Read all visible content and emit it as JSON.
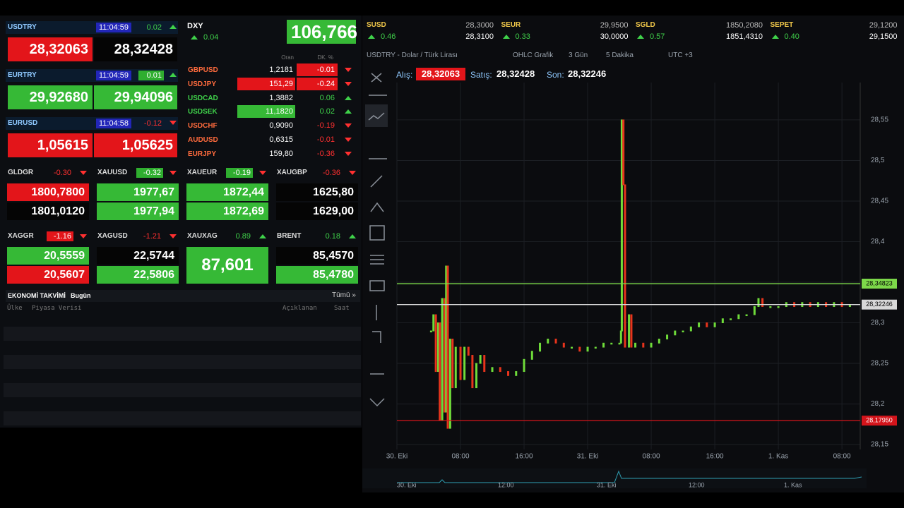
{
  "majors": [
    {
      "symbol": "USDTRY",
      "time": "11:04:59",
      "change": "0.02",
      "bid": "28,32063",
      "ask": "28,32428",
      "bid_bg": "#e3151a",
      "ask_bg": "#050505"
    },
    {
      "symbol": "EURTRY",
      "time": "11:04:59",
      "change": "0.01",
      "change_bg": "#2fae2f",
      "bid": "29,92680",
      "ask": "29,94096",
      "bid_bg": "#36b936",
      "ask_bg": "#36b936"
    },
    {
      "symbol": "EURUSD",
      "time": "11:04:58",
      "change": "-0.12",
      "bid": "1,05615",
      "ask": "1,05625",
      "bid_bg": "#e3151a",
      "ask_bg": "#e3151a"
    }
  ],
  "metals_rows": [
    [
      {
        "symbol": "GLDGR",
        "change": "-0.30",
        "bid": "1800,7800",
        "ask": "1801,0120",
        "bid_bg": "#e3151a",
        "ask_bg": "#050505"
      },
      {
        "symbol": "XAUUSD",
        "change": "-0.32",
        "change_bg": "#2fae2f",
        "bid": "1977,67",
        "ask": "1977,94",
        "bid_bg": "#36b936",
        "ask_bg": "#36b936"
      },
      {
        "symbol": "XAUEUR",
        "change": "-0.19",
        "change_bg": "#2fae2f",
        "bid": "1872,44",
        "ask": "1872,69",
        "bid_bg": "#36b936",
        "ask_bg": "#36b936"
      },
      {
        "symbol": "XAUGBP",
        "change": "-0.36",
        "bid": "1625,80",
        "ask": "1629,00",
        "bid_bg": "#050505",
        "ask_bg": "#050505"
      }
    ],
    [
      {
        "symbol": "XAGGR",
        "change": "-1.16",
        "change_bg": "#e3151a",
        "bid": "20,5559",
        "ask": "20,5607",
        "bid_bg": "#36b936",
        "ask_bg": "#e3151a"
      },
      {
        "symbol": "XAGUSD",
        "change": "-1.21",
        "bid": "22,5744",
        "ask": "22,5806",
        "bid_bg": "#050505",
        "ask_bg": "#36b936"
      },
      {
        "symbol": "XAUXAG",
        "change": "0.89",
        "price": "87,601",
        "price_bg": "#36b936"
      },
      {
        "symbol": "BRENT",
        "change": "0.18",
        "bid": "85,4570",
        "ask": "85,4780",
        "bid_bg": "#050505",
        "ask_bg": "#36b936"
      }
    ]
  ],
  "calendar": {
    "title": "EKONOMİ TAKVİMİ",
    "scope": "Bugün",
    "all": "Tümü »",
    "headers": [
      "Ülke",
      "Piyasa Verisi",
      "Açıklanan",
      "Saat"
    ]
  },
  "dxy": {
    "symbol": "DXY",
    "change": "0.04",
    "price": "106,766"
  },
  "fx_table": {
    "headers": [
      "Oran",
      "DK. %"
    ],
    "rows": [
      {
        "symbol": "GBPUSD",
        "rate": "1,2181",
        "change": "-0.01",
        "change_bg": "#e3151a"
      },
      {
        "symbol": "USDJPY",
        "rate": "151,29",
        "change": "-0.24",
        "rate_bg": "#e3151a",
        "change_bg": "#e3151a"
      },
      {
        "symbol": "USDCAD",
        "rate": "1,3882",
        "change": "0.06"
      },
      {
        "symbol": "USDSEK",
        "rate": "11,1820",
        "change": "0.02",
        "rate_bg": "#36b936"
      },
      {
        "symbol": "USDCHF",
        "rate": "0,9090",
        "change": "-0.19"
      },
      {
        "symbol": "AUDUSD",
        "rate": "0,6315",
        "change": "-0.01"
      },
      {
        "symbol": "EURJPY",
        "rate": "159,80",
        "change": "-0.36"
      }
    ]
  },
  "strip": [
    {
      "symbol": "SUSD",
      "change": "0.46",
      "bid": "28,3000",
      "ask": "28,3100"
    },
    {
      "symbol": "SEUR",
      "change": "0.33",
      "bid": "29,9500",
      "ask": "30,0000"
    },
    {
      "symbol": "SGLD",
      "change": "0.57",
      "bid": "1850,2080",
      "ask": "1851,4310"
    },
    {
      "symbol": "SEPET",
      "change": "0.40",
      "bid": "29,1200",
      "ask": "29,1500"
    }
  ],
  "toolbar": [
    "USDTRY - Dolar / Türk Lirası",
    "OHLC Grafik",
    "3 Gün",
    "5 Dakika",
    "UTC +3"
  ],
  "quote": {
    "bid_label": "Alış:",
    "bid": "28,32063",
    "ask_label": "Satış:",
    "ask": "28,32428",
    "last_label": "Son:",
    "last": "28,32246"
  },
  "navigator_labels": [
    "30. Eki",
    "12:00",
    "31. Eki",
    "12:00",
    "1. Kas"
  ],
  "chart_data": {
    "type": "line",
    "up_color": "#6fdc3a",
    "down_color": "#e8341c",
    "xlim": [
      0,
      58.3
    ],
    "ylim": [
      28.144,
      28.596
    ],
    "xticks": [
      {
        "value": 0,
        "label": "30. Eki"
      },
      {
        "value": 8,
        "label": "08:00"
      },
      {
        "value": 16,
        "label": "16:00"
      },
      {
        "value": 24,
        "label": "31. Eki"
      },
      {
        "value": 32,
        "label": "08:00"
      },
      {
        "value": 40,
        "label": "16:00"
      },
      {
        "value": 48,
        "label": "1. Kas"
      },
      {
        "value": 56,
        "label": "08:00"
      }
    ],
    "yticks": [
      {
        "value": 28.15,
        "label": "28,15"
      },
      {
        "value": 28.2,
        "label": "28,2"
      },
      {
        "value": 28.25,
        "label": "28,25"
      },
      {
        "value": 28.3,
        "label": "28,3"
      },
      {
        "value": 28.35,
        "label": "28,35"
      },
      {
        "value": 28.4,
        "label": "28,4"
      },
      {
        "value": 28.45,
        "label": "28,45"
      },
      {
        "value": 28.5,
        "label": "28,5"
      },
      {
        "value": 28.55,
        "label": "28,55"
      }
    ],
    "grid": true,
    "levels": [
      {
        "value": 28.34823,
        "label": "28,34823",
        "color": "#7dd94a"
      },
      {
        "value": 28.32246,
        "label": "28,32246",
        "color": "#d8d8d8"
      },
      {
        "value": 28.1795,
        "label": "28,17950",
        "color": "#d4141b"
      }
    ],
    "series": [
      {
        "name": "USDTRY",
        "x": [
          4.3,
          4.6,
          4.9,
          5.2,
          5.4,
          5.7,
          6.0,
          6.2,
          6.4,
          6.7,
          7.0,
          7.4,
          8,
          8.5,
          9,
          9.5,
          10,
          10.5,
          11,
          12,
          13,
          14,
          15,
          16,
          17,
          18,
          19,
          20,
          21,
          22,
          23,
          24,
          25,
          26,
          27,
          28,
          28.2,
          28.3,
          28.5,
          28.7,
          29.2,
          29.5,
          30,
          31,
          32,
          33,
          34,
          35,
          36,
          37,
          38,
          39,
          40,
          41,
          42,
          43,
          44,
          45,
          45.5,
          46,
          47,
          48,
          49,
          50,
          51,
          52,
          53,
          54,
          55,
          56,
          57
        ],
        "values": [
          28.29,
          28.31,
          28.24,
          28.3,
          28.18,
          28.33,
          28.19,
          28.37,
          28.17,
          28.28,
          28.22,
          28.27,
          28.23,
          28.27,
          28.26,
          28.22,
          28.25,
          28.26,
          28.24,
          28.245,
          28.24,
          28.235,
          28.24,
          28.255,
          28.265,
          28.275,
          28.28,
          28.275,
          28.27,
          28.27,
          28.265,
          28.27,
          28.27,
          28.275,
          28.275,
          28.275,
          28.29,
          28.55,
          28.47,
          28.27,
          28.31,
          28.27,
          28.275,
          28.27,
          28.275,
          28.28,
          28.285,
          28.29,
          28.29,
          28.295,
          28.3,
          28.295,
          28.3,
          28.305,
          28.305,
          28.31,
          28.31,
          28.32,
          28.33,
          28.32,
          28.32,
          28.32,
          28.325,
          28.32,
          28.325,
          28.32,
          28.325,
          28.32,
          28.325,
          28.32,
          28.322
        ]
      }
    ]
  }
}
